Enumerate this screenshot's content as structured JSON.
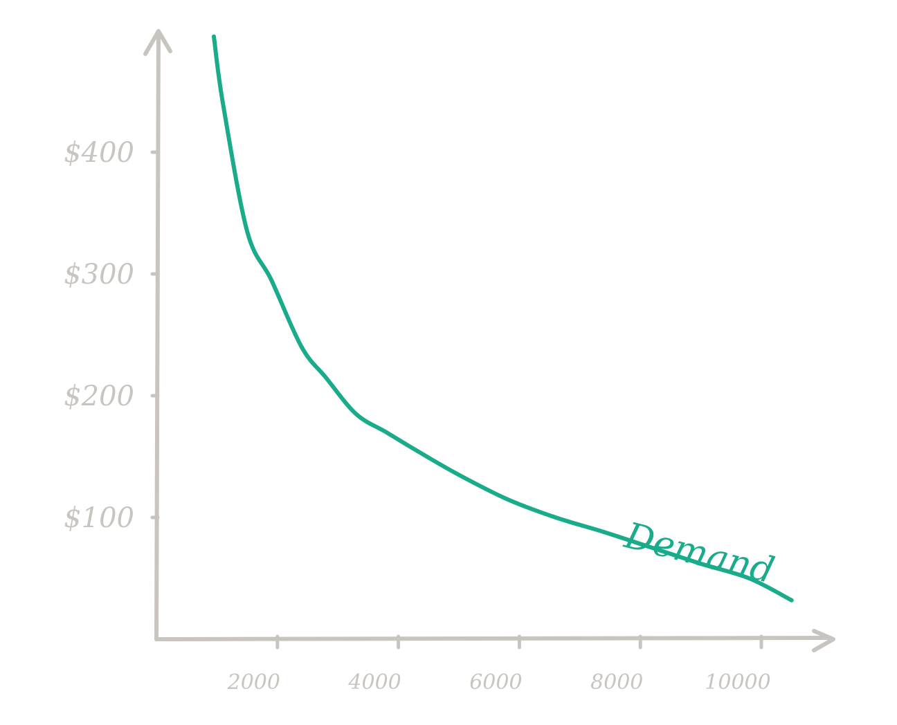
{
  "chart_data": {
    "type": "line",
    "title": "",
    "xlabel": "",
    "ylabel": "",
    "xlim": [
      0,
      10700
    ],
    "ylim": [
      0,
      495
    ],
    "x_ticks": [
      2000,
      4000,
      6000,
      8000,
      10000
    ],
    "x_tick_labels": [
      "2000",
      "4000",
      "6000",
      "8000",
      "10000"
    ],
    "y_ticks": [
      100,
      200,
      300,
      400
    ],
    "y_tick_labels": [
      "$100",
      "$200",
      "$300",
      "$400"
    ],
    "grid": false,
    "colors": {
      "axis": "#c8c5c0",
      "curve": "#1aab8a"
    },
    "series": [
      {
        "name": "Demand",
        "x": [
          950,
          1100,
          1500,
          1900,
          2400,
          2800,
          3300,
          3800,
          4300,
          5000,
          5800,
          6600,
          7400,
          8200,
          9000,
          9800,
          10500
        ],
        "values": [
          495,
          440,
          335,
          295,
          240,
          215,
          185,
          170,
          155,
          135,
          115,
          100,
          88,
          75,
          62,
          50,
          32
        ]
      }
    ]
  }
}
